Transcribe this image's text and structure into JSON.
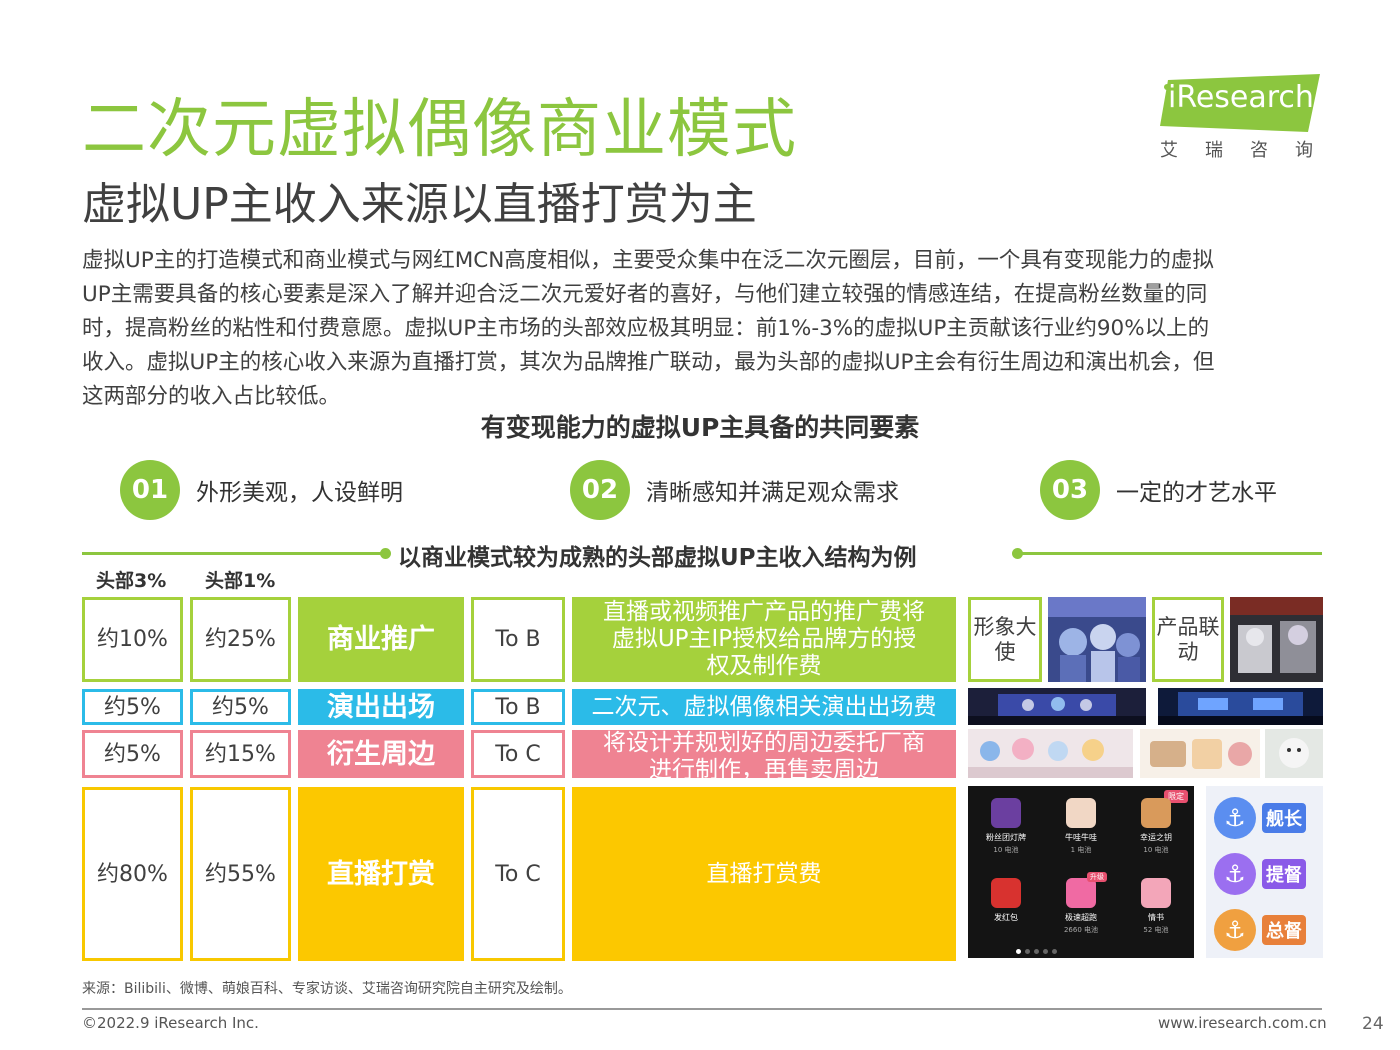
{
  "header": {
    "title": "二次元虚拟偶像商业模式",
    "subtitle": "虚拟UP主收入来源以直播打赏为主"
  },
  "logo": {
    "brand": "iResearch",
    "cn": "艾瑞咨询"
  },
  "body_lines": [
    "虚拟UP主的打造模式和商业模式与网红MCN高度相似，主要受众集中在泛二次元圈层，目前，一个具有变现能力的虚拟",
    "UP主需要具备的核心要素是深入了解并迎合泛二次元爱好者的喜好，与他们建立较强的情感连结，在提高粉丝数量的同",
    "时，提高粉丝的粘性和付费意愿。虚拟UP主市场的头部效应极其明显：前1%-3%的虚拟UP主贡献该行业约90%以上的",
    "收入。虚拟UP主的核心收入来源为直播打赏，其次为品牌推广联动，最为头部的虚拟UP主会有衍生周边和演出机会，但",
    "这两部分的收入占比较低。"
  ],
  "factors": {
    "title": "有变现能力的虚拟UP主具备的共同要素",
    "items": [
      {
        "num": "01",
        "text": "外形美观，人设鲜明"
      },
      {
        "num": "02",
        "text": "清晰感知并满足观众需求"
      },
      {
        "num": "03",
        "text": "一定的才艺水平"
      }
    ]
  },
  "structure": {
    "title": "以商业模式较为成熟的头部虚拟UP主收入结构为例",
    "col_top3": "头部3%",
    "col_top1": "头部1%",
    "rows": [
      {
        "top3": "约10%",
        "top1": "约25%",
        "category": "商业推广",
        "target": "To B",
        "desc": "直播或视频推广产品的推广费将虚拟UP主IP授权给品牌方的授权及制作费",
        "color": "#a5d13c"
      },
      {
        "top3": "约5%",
        "top1": "约5%",
        "category": "演出出场",
        "target": "To B",
        "desc": "二次元、虚拟偶像相关演出出场费",
        "color": "#2bbbe8"
      },
      {
        "top3": "约5%",
        "top1": "约15%",
        "category": "衍生周边",
        "target": "To C",
        "desc": "将设计并规划好的周边委托厂商进行制作，再售卖周边",
        "color": "#ef8392"
      },
      {
        "top3": "约80%",
        "top1": "约55%",
        "category": "直播打赏",
        "target": "To C",
        "desc": "直播打赏费",
        "color": "#fcc800"
      }
    ]
  },
  "side_labels": {
    "ambassador": "形象大使",
    "collab": "产品联动"
  },
  "gift_panel": {
    "badge": "限定",
    "items": [
      {
        "name": "粉丝团灯牌",
        "price": "10 电池"
      },
      {
        "name": "牛哇牛哇",
        "price": "1 电池"
      },
      {
        "name": "幸运之钥",
        "price": "10 电池"
      },
      {
        "name": "发红包",
        "price": ""
      },
      {
        "name": "极速超跑",
        "price": "2660 电池"
      },
      {
        "name": "情书",
        "price": "52 电池"
      }
    ],
    "tag": "升级"
  },
  "guard_badges": [
    "舰长",
    "提督",
    "总督"
  ],
  "footer": {
    "source": "来源：Bilibili、微博、萌娘百科、专家访谈、艾瑞咨询研究院自主研究及绘制。",
    "copyright": "©2022.9 iResearch Inc.",
    "site": "www.iresearch.com.cn",
    "page": "24"
  }
}
